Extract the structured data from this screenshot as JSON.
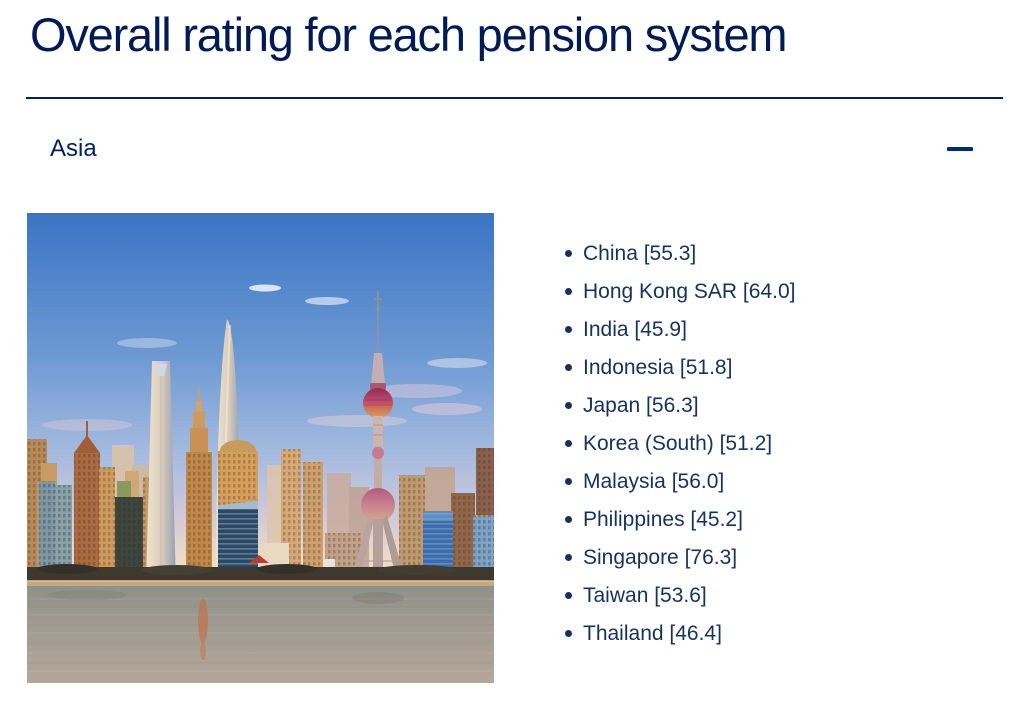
{
  "header": {
    "title": "Overall rating for each pension system"
  },
  "accordion": {
    "title": "Asia",
    "state": "expanded",
    "collapse_icon": "minus-icon"
  },
  "figure": {
    "name": "shanghai-skyline-photo"
  },
  "ratings": {
    "items": [
      {
        "country": "China",
        "rating": "55.3"
      },
      {
        "country": "Hong Kong SAR",
        "rating": "64.0"
      },
      {
        "country": "India",
        "rating": "45.9"
      },
      {
        "country": "Indonesia",
        "rating": "51.8"
      },
      {
        "country": "Japan",
        "rating": "56.3"
      },
      {
        "country": "Korea (South)",
        "rating": "51.2"
      },
      {
        "country": "Malaysia",
        "rating": "56.0"
      },
      {
        "country": "Philippines",
        "rating": "45.2"
      },
      {
        "country": "Singapore",
        "rating": "76.3"
      },
      {
        "country": "Taiwan",
        "rating": "53.6"
      },
      {
        "country": "Thailand",
        "rating": "46.4"
      }
    ]
  },
  "colors": {
    "brand_navy": "#001b54",
    "text_navy": "#16325c",
    "divider": "#002060",
    "accent": "#00277d"
  }
}
